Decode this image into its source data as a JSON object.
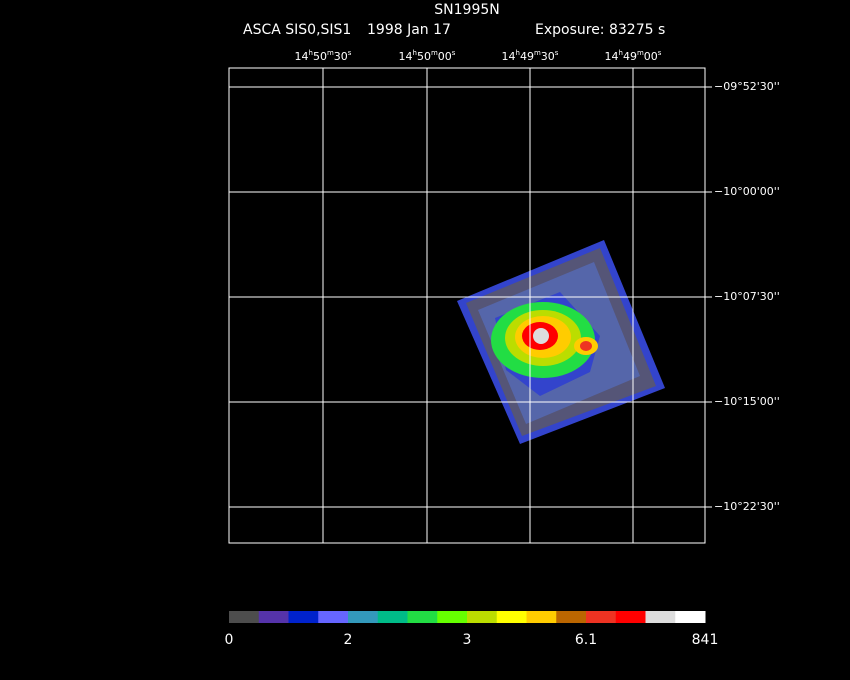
{
  "header": {
    "title": "SN1995N",
    "instrument": "ASCA SIS0,SIS1",
    "date": "1998 Jan 17",
    "exposure": "Exposure: 83275 s"
  },
  "ra_labels": [
    [
      "14",
      "h",
      "50",
      "m",
      "30",
      "s"
    ],
    [
      "14",
      "h",
      "50",
      "m",
      "00",
      "s"
    ],
    [
      "14",
      "h",
      "49",
      "m",
      "30",
      "s"
    ],
    [
      "14",
      "h",
      "49",
      "m",
      "00",
      "s"
    ]
  ],
  "dec_labels": [
    "−09°52'30''",
    "−10°00'00''",
    "−10°07'30''",
    "−10°15'00''",
    "−10°22'30''"
  ],
  "colorbar": {
    "colors": [
      "#4d4d4d",
      "#5533aa",
      "#0022cc",
      "#6666ff",
      "#3399bb",
      "#00bb88",
      "#22dd44",
      "#66ff00",
      "#bbdd00",
      "#ffff00",
      "#ffcc00",
      "#bb6600",
      "#ee3322",
      "#ff0000",
      "#dddddd",
      "#ffffff"
    ],
    "labels": [
      "0",
      "2",
      "3",
      "6.1",
      "841"
    ]
  }
}
